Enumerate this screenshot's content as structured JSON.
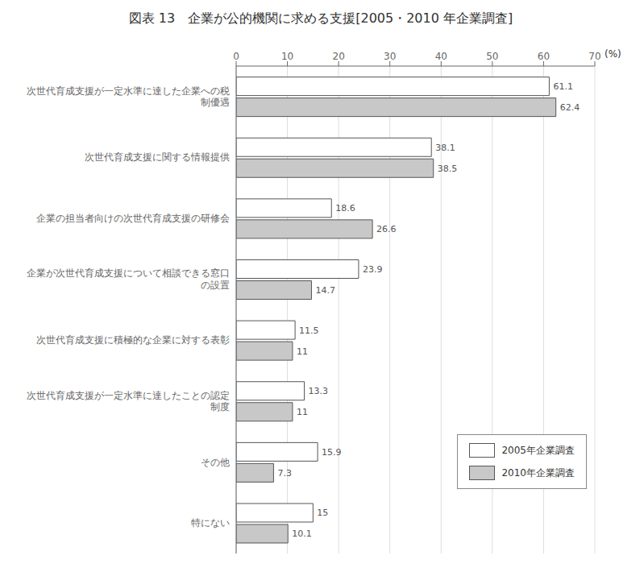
{
  "chart_data": {
    "type": "bar",
    "title": "図表 13　企業が公的機関に求める支援[2005・2010 年企業調査]",
    "orientation": "horizontal",
    "categories": [
      "次世代育成支援が一定水準に達した企業への税\n制優遇",
      "次世代育成支援に関する情報提供",
      "企業の担当者向けの次世代育成支援の研修会",
      "企業が次世代育成支援について相談できる窓口\nの設置",
      "次世代育成支援に積極的な企業に対する表彰",
      "次世代育成支援が一定水準に達したことの認定\n制度",
      "その他",
      "特にない"
    ],
    "series": [
      {
        "name": "2005年企業調査",
        "color": "#ffffff",
        "values": [
          61.1,
          38.1,
          18.6,
          23.9,
          11.5,
          13.3,
          15.9,
          15.0
        ]
      },
      {
        "name": "2010年企業調査",
        "color": "#c8c8c8",
        "values": [
          62.4,
          38.5,
          26.6,
          14.7,
          11.0,
          11.0,
          7.3,
          10.1
        ]
      }
    ],
    "x_label": "(%)",
    "xlim": [
      0,
      70
    ],
    "xticks": [
      0,
      10,
      20,
      30,
      40,
      50,
      60,
      70
    ],
    "grid": true,
    "legend": "lower right",
    "data_labels": true
  }
}
